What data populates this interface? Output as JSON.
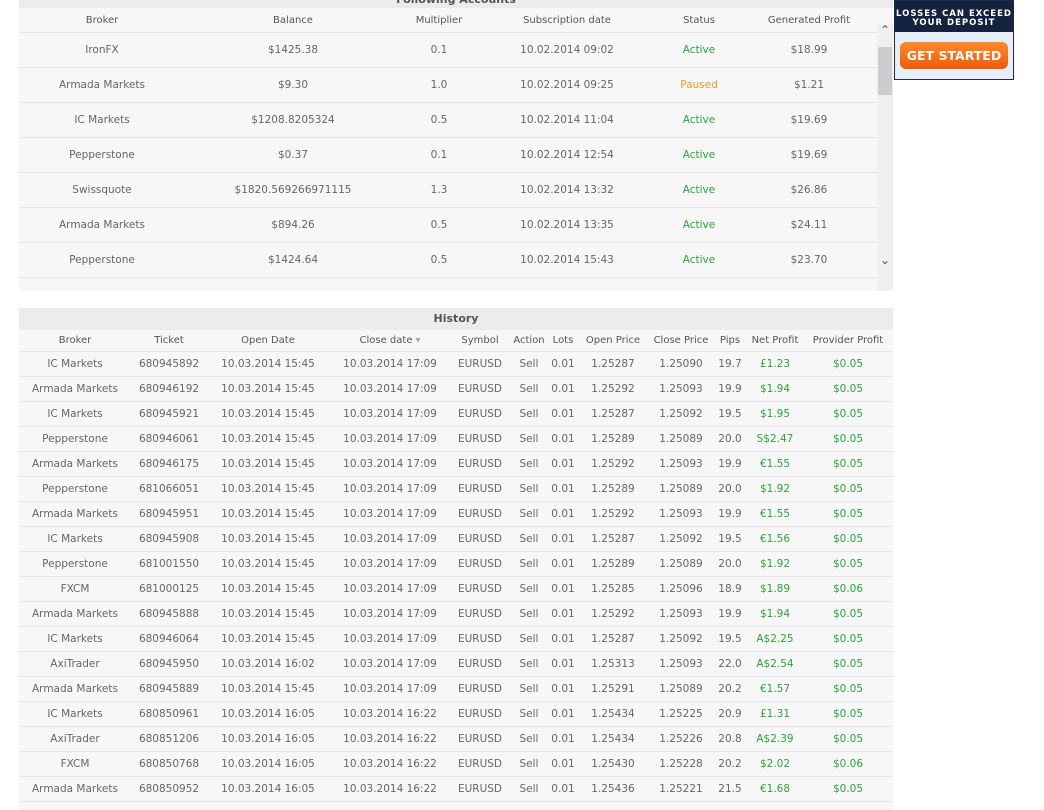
{
  "following": {
    "title": "Following Accounts",
    "columns": [
      "Broker",
      "Balance",
      "Multiplier",
      "Subscription date",
      "Status",
      "Generated Profit"
    ],
    "rows": [
      [
        "IronFX",
        "$1425.38",
        "0.1",
        "10.02.2014 09:02",
        "Active",
        "$18.99"
      ],
      [
        "Armada Markets",
        "$9.30",
        "1.0",
        "10.02.2014 09:25",
        "Paused",
        "$1.21"
      ],
      [
        "IC Markets",
        "$1208.8205324",
        "0.5",
        "10.02.2014 11:04",
        "Active",
        "$19.69"
      ],
      [
        "Pepperstone",
        "$0.37",
        "0.1",
        "10.02.2014 12:54",
        "Active",
        "$19.69"
      ],
      [
        "Swissquote",
        "$1820.569266971115",
        "1.3",
        "10.02.2014 13:32",
        "Active",
        "$26.86"
      ],
      [
        "Armada Markets",
        "$894.26",
        "0.5",
        "10.02.2014 13:35",
        "Active",
        "$24.11"
      ],
      [
        "Pepperstone",
        "$1424.64",
        "0.5",
        "10.02.2014 15:43",
        "Active",
        "$23.70"
      ]
    ],
    "scroll_up_icon": "chevron-up-icon",
    "scroll_down_icon": "chevron-down-icon"
  },
  "history": {
    "title": "History",
    "columns": [
      "Broker",
      "Ticket",
      "Open Date",
      "Close date",
      "Symbol",
      "Action",
      "Lots",
      "Open Price",
      "Close Price",
      "Pips",
      "Net Profit",
      "Provider Profit"
    ],
    "sort_icon": "▾",
    "rows": [
      [
        "IC Markets",
        "680945892",
        "10.03.2014 15:45",
        "10.03.2014 17:09",
        "EURUSD",
        "Sell",
        "0.01",
        "1.25287",
        "1.25090",
        "19.7",
        "£1.23",
        "$0.05"
      ],
      [
        "Armada Markets",
        "680946192",
        "10.03.2014 15:45",
        "10.03.2014 17:09",
        "EURUSD",
        "Sell",
        "0.01",
        "1.25292",
        "1.25093",
        "19.9",
        "$1.94",
        "$0.05"
      ],
      [
        "IC Markets",
        "680945921",
        "10.03.2014 15:45",
        "10.03.2014 17:09",
        "EURUSD",
        "Sell",
        "0.01",
        "1.25287",
        "1.25092",
        "19.5",
        "$1.95",
        "$0.05"
      ],
      [
        "Pepperstone",
        "680946061",
        "10.03.2014 15:45",
        "10.03.2014 17:09",
        "EURUSD",
        "Sell",
        "0.01",
        "1.25289",
        "1.25089",
        "20.0",
        "S$2.47",
        "$0.05"
      ],
      [
        "Armada Markets",
        "680946175",
        "10.03.2014 15:45",
        "10.03.2014 17:09",
        "EURUSD",
        "Sell",
        "0.01",
        "1.25292",
        "1.25093",
        "19.9",
        "€1.55",
        "$0.05"
      ],
      [
        "Pepperstone",
        "681066051",
        "10.03.2014 15:45",
        "10.03.2014 17:09",
        "EURUSD",
        "Sell",
        "0.01",
        "1.25289",
        "1.25089",
        "20.0",
        "$1.92",
        "$0.05"
      ],
      [
        "Armada Markets",
        "680945951",
        "10.03.2014 15:45",
        "10.03.2014 17:09",
        "EURUSD",
        "Sell",
        "0.01",
        "1.25292",
        "1.25093",
        "19.9",
        "€1.55",
        "$0.05"
      ],
      [
        "IC Markets",
        "680945908",
        "10.03.2014 15:45",
        "10.03.2014 17:09",
        "EURUSD",
        "Sell",
        "0.01",
        "1.25287",
        "1.25092",
        "19.5",
        "€1.56",
        "$0.05"
      ],
      [
        "Pepperstone",
        "681001550",
        "10.03.2014 15:45",
        "10.03.2014 17:09",
        "EURUSD",
        "Sell",
        "0.01",
        "1.25289",
        "1.25089",
        "20.0",
        "$1.92",
        "$0.05"
      ],
      [
        "FXCM",
        "681000125",
        "10.03.2014 15:45",
        "10.03.2014 17:09",
        "EURUSD",
        "Sell",
        "0.01",
        "1.25285",
        "1.25096",
        "18.9",
        "$1.89",
        "$0.06"
      ],
      [
        "Armada Markets",
        "680945888",
        "10.03.2014 15:45",
        "10.03.2014 17:09",
        "EURUSD",
        "Sell",
        "0.01",
        "1.25292",
        "1.25093",
        "19.9",
        "$1.94",
        "$0.05"
      ],
      [
        "IC Markets",
        "680946064",
        "10.03.2014 15:45",
        "10.03.2014 17:09",
        "EURUSD",
        "Sell",
        "0.01",
        "1.25287",
        "1.25092",
        "19.5",
        "A$2.25",
        "$0.05"
      ],
      [
        "AxiTrader",
        "680945950",
        "10.03.2014 16:02",
        "10.03.2014 17:09",
        "EURUSD",
        "Sell",
        "0.01",
        "1.25313",
        "1.25093",
        "22.0",
        "A$2.54",
        "$0.05"
      ],
      [
        "Armada Markets",
        "680945889",
        "10.03.2014 15:45",
        "10.03.2014 17:09",
        "EURUSD",
        "Sell",
        "0.01",
        "1.25291",
        "1.25089",
        "20.2",
        "€1.57",
        "$0.05"
      ],
      [
        "IC Markets",
        "680850961",
        "10.03.2014 16:05",
        "10.03.2014 16:22",
        "EURUSD",
        "Sell",
        "0.01",
        "1.25434",
        "1.25225",
        "20.9",
        "£1.31",
        "$0.05"
      ],
      [
        "AxiTrader",
        "680851206",
        "10.03.2014 16:05",
        "10.03.2014 16:22",
        "EURUSD",
        "Sell",
        "0.01",
        "1.25434",
        "1.25226",
        "20.8",
        "A$2.39",
        "$0.05"
      ],
      [
        "FXCM",
        "680850768",
        "10.03.2014 16:05",
        "10.03.2014 16:22",
        "EURUSD",
        "Sell",
        "0.01",
        "1.25430",
        "1.25228",
        "20.2",
        "$2.02",
        "$0.06"
      ],
      [
        "Armada Markets",
        "680850952",
        "10.03.2014 16:05",
        "10.03.2014 16:22",
        "EURUSD",
        "Sell",
        "0.01",
        "1.25436",
        "1.25221",
        "21.5",
        "€1.68",
        "$0.05"
      ]
    ]
  },
  "ad": {
    "warning": "LOSSES CAN EXCEED YOUR DEPOSIT",
    "button_label": "GET STARTED"
  },
  "colors": {
    "active": "#2aa63a",
    "paused": "#f39a2a",
    "profit": "#2aa63a",
    "ad_navy": "#14213f",
    "ad_button": "#f26a12"
  }
}
